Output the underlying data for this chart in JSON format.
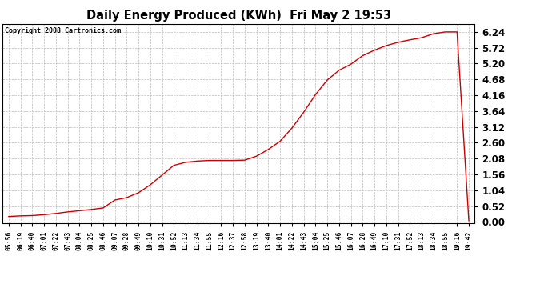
{
  "title": "Daily Energy Produced (KWh)  Fri May 2 19:53",
  "copyright_text": "Copyright 2008 Cartronics.com",
  "line_color": "#cc0000",
  "bg_color": "#ffffff",
  "plot_bg_color": "#ffffff",
  "grid_color": "#bbbbbb",
  "y_ticks": [
    0.0,
    0.52,
    1.04,
    1.56,
    2.08,
    2.6,
    3.12,
    3.64,
    4.16,
    4.68,
    5.2,
    5.72,
    6.24
  ],
  "ylim": [
    -0.05,
    6.5
  ],
  "x_labels": [
    "05:56",
    "06:19",
    "06:40",
    "07:01",
    "07:22",
    "07:43",
    "08:04",
    "08:25",
    "08:46",
    "09:07",
    "09:28",
    "09:49",
    "10:10",
    "10:31",
    "10:52",
    "11:13",
    "11:34",
    "11:55",
    "12:16",
    "12:37",
    "12:58",
    "13:19",
    "13:40",
    "14:01",
    "14:22",
    "14:43",
    "15:04",
    "15:25",
    "15:46",
    "16:07",
    "16:28",
    "16:49",
    "17:10",
    "17:31",
    "17:52",
    "18:13",
    "18:34",
    "18:55",
    "19:16",
    "19:42"
  ],
  "curve_y": [
    0.18,
    0.2,
    0.21,
    0.24,
    0.28,
    0.33,
    0.37,
    0.41,
    0.46,
    0.72,
    0.8,
    0.96,
    1.22,
    1.54,
    1.86,
    1.96,
    2.0,
    2.02,
    2.02,
    2.02,
    2.03,
    2.16,
    2.38,
    2.65,
    3.08,
    3.6,
    4.18,
    4.66,
    4.98,
    5.18,
    5.46,
    5.64,
    5.79,
    5.9,
    5.98,
    6.05,
    6.18,
    6.24,
    6.24,
    0.04
  ]
}
